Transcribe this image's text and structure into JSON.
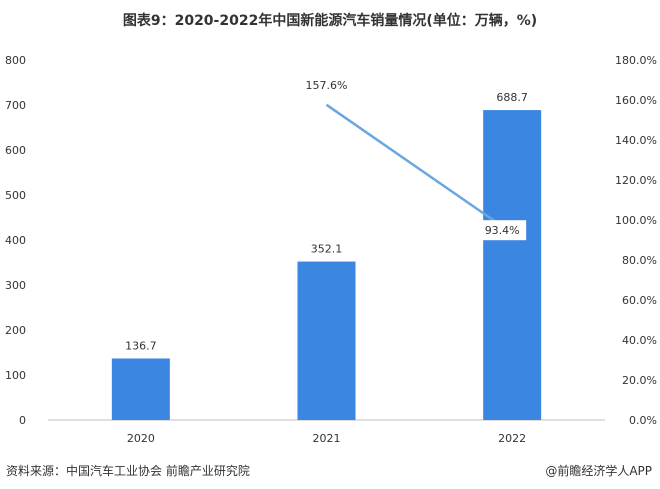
{
  "chart_data": {
    "type": "bar",
    "title": "图表9：2020-2022年中国新能源汽车销量情况(单位：万辆，%)",
    "categories": [
      "2020",
      "2021",
      "2022"
    ],
    "series": [
      {
        "type": "bar",
        "axis": "left",
        "values": [
          136.7,
          352.1,
          688.7
        ]
      },
      {
        "type": "line",
        "axis": "right",
        "x": [
          "2021",
          "2022"
        ],
        "values": [
          157.6,
          93.4
        ]
      }
    ],
    "data_labels": {
      "bar": [
        "136.7",
        "352.1",
        "688.7"
      ],
      "line": [
        "157.6%",
        "93.4%"
      ]
    },
    "ylim": [
      0,
      800
    ],
    "y_ticks": [
      "0",
      "100",
      "200",
      "300",
      "400",
      "500",
      "600",
      "700",
      "800"
    ],
    "y2lim": [
      0,
      180
    ],
    "y2_ticks": [
      "0.0%",
      "20.0%",
      "40.0%",
      "60.0%",
      "80.0%",
      "100.0%",
      "120.0%",
      "140.0%",
      "160.0%",
      "180.0%"
    ],
    "grid": false,
    "colors": {
      "bar": "#3b86e0",
      "line": "#6aa6e0"
    }
  },
  "footer": {
    "source": "资料来源：中国汽车工业协会 前瞻产业研究院",
    "brand": "@前瞻经济学人APP"
  }
}
